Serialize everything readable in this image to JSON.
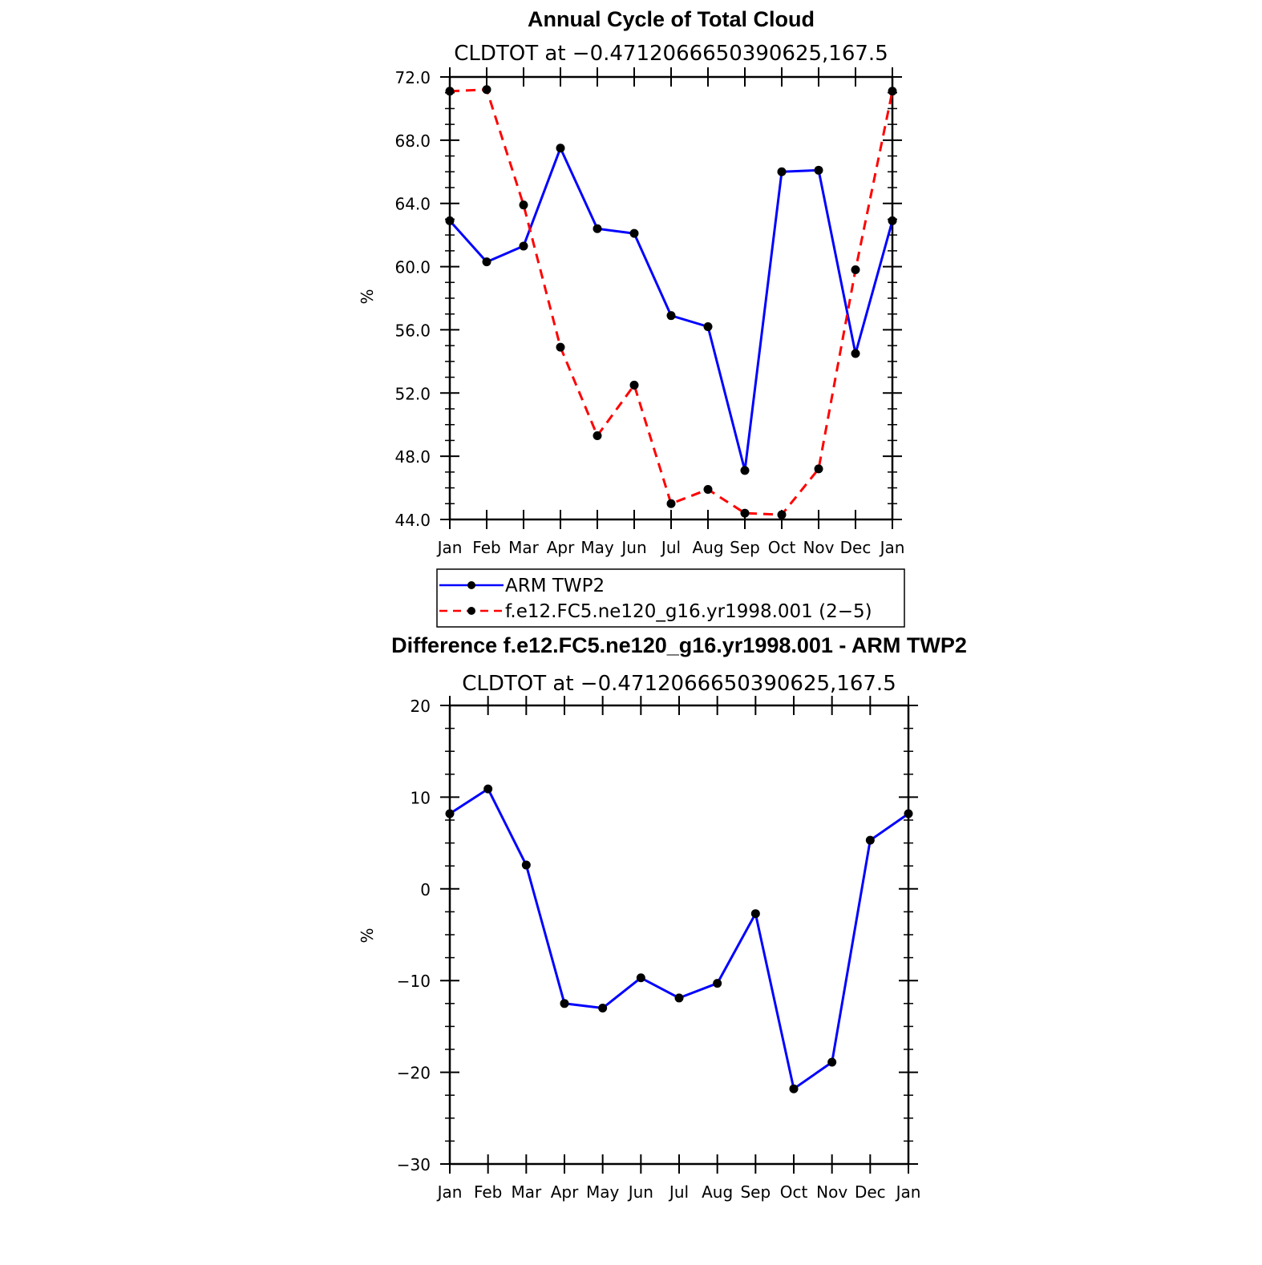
{
  "chart_data": [
    {
      "type": "line",
      "title": "Annual Cycle of Total Cloud",
      "subtitle": "CLDTOT at −0.4712066650390625,167.5",
      "xlabel": "",
      "ylabel": "%",
      "categories": [
        "Jan",
        "Feb",
        "Mar",
        "Apr",
        "May",
        "Jun",
        "Jul",
        "Aug",
        "Sep",
        "Oct",
        "Nov",
        "Dec",
        "Jan"
      ],
      "ylim": [
        44.0,
        72.0
      ],
      "yticks": [
        "44.0",
        "48.0",
        "52.0",
        "56.0",
        "60.0",
        "64.0",
        "68.0",
        "72.0"
      ],
      "grid": false,
      "legend_position": "below",
      "series": [
        {
          "name": "ARM TWP2",
          "color": "#0000ff",
          "dash": "solid",
          "values": [
            62.9,
            60.3,
            61.3,
            67.5,
            62.4,
            62.1,
            56.9,
            56.2,
            47.1,
            66.0,
            66.1,
            54.5,
            62.9
          ]
        },
        {
          "name": "f.e12.FC5.ne120_g16.yr1998.001 (2−5)",
          "color": "#ff0000",
          "dash": "dashed",
          "values": [
            71.1,
            71.2,
            63.9,
            54.9,
            49.3,
            52.5,
            45.0,
            45.9,
            44.4,
            44.3,
            47.2,
            59.8,
            71.1
          ]
        }
      ]
    },
    {
      "type": "line",
      "title": "Difference f.e12.FC5.ne120_g16.yr1998.001 - ARM TWP2",
      "subtitle": "CLDTOT at −0.4712066650390625,167.5",
      "xlabel": "",
      "ylabel": "%",
      "categories": [
        "Jan",
        "Feb",
        "Mar",
        "Apr",
        "May",
        "Jun",
        "Jul",
        "Aug",
        "Sep",
        "Oct",
        "Nov",
        "Dec",
        "Jan"
      ],
      "ylim": [
        -30,
        20
      ],
      "yticks": [
        "−30",
        "−20",
        "−10",
        "0",
        "10",
        "20"
      ],
      "grid": false,
      "series": [
        {
          "color": "#0000ff",
          "dash": "solid",
          "values": [
            8.2,
            10.9,
            2.6,
            -12.5,
            -13.0,
            -9.7,
            -11.9,
            -10.3,
            -2.7,
            -21.8,
            -18.9,
            5.3,
            8.2
          ]
        }
      ]
    }
  ],
  "colors": {
    "axis": "#000000",
    "marker": "#000000"
  }
}
